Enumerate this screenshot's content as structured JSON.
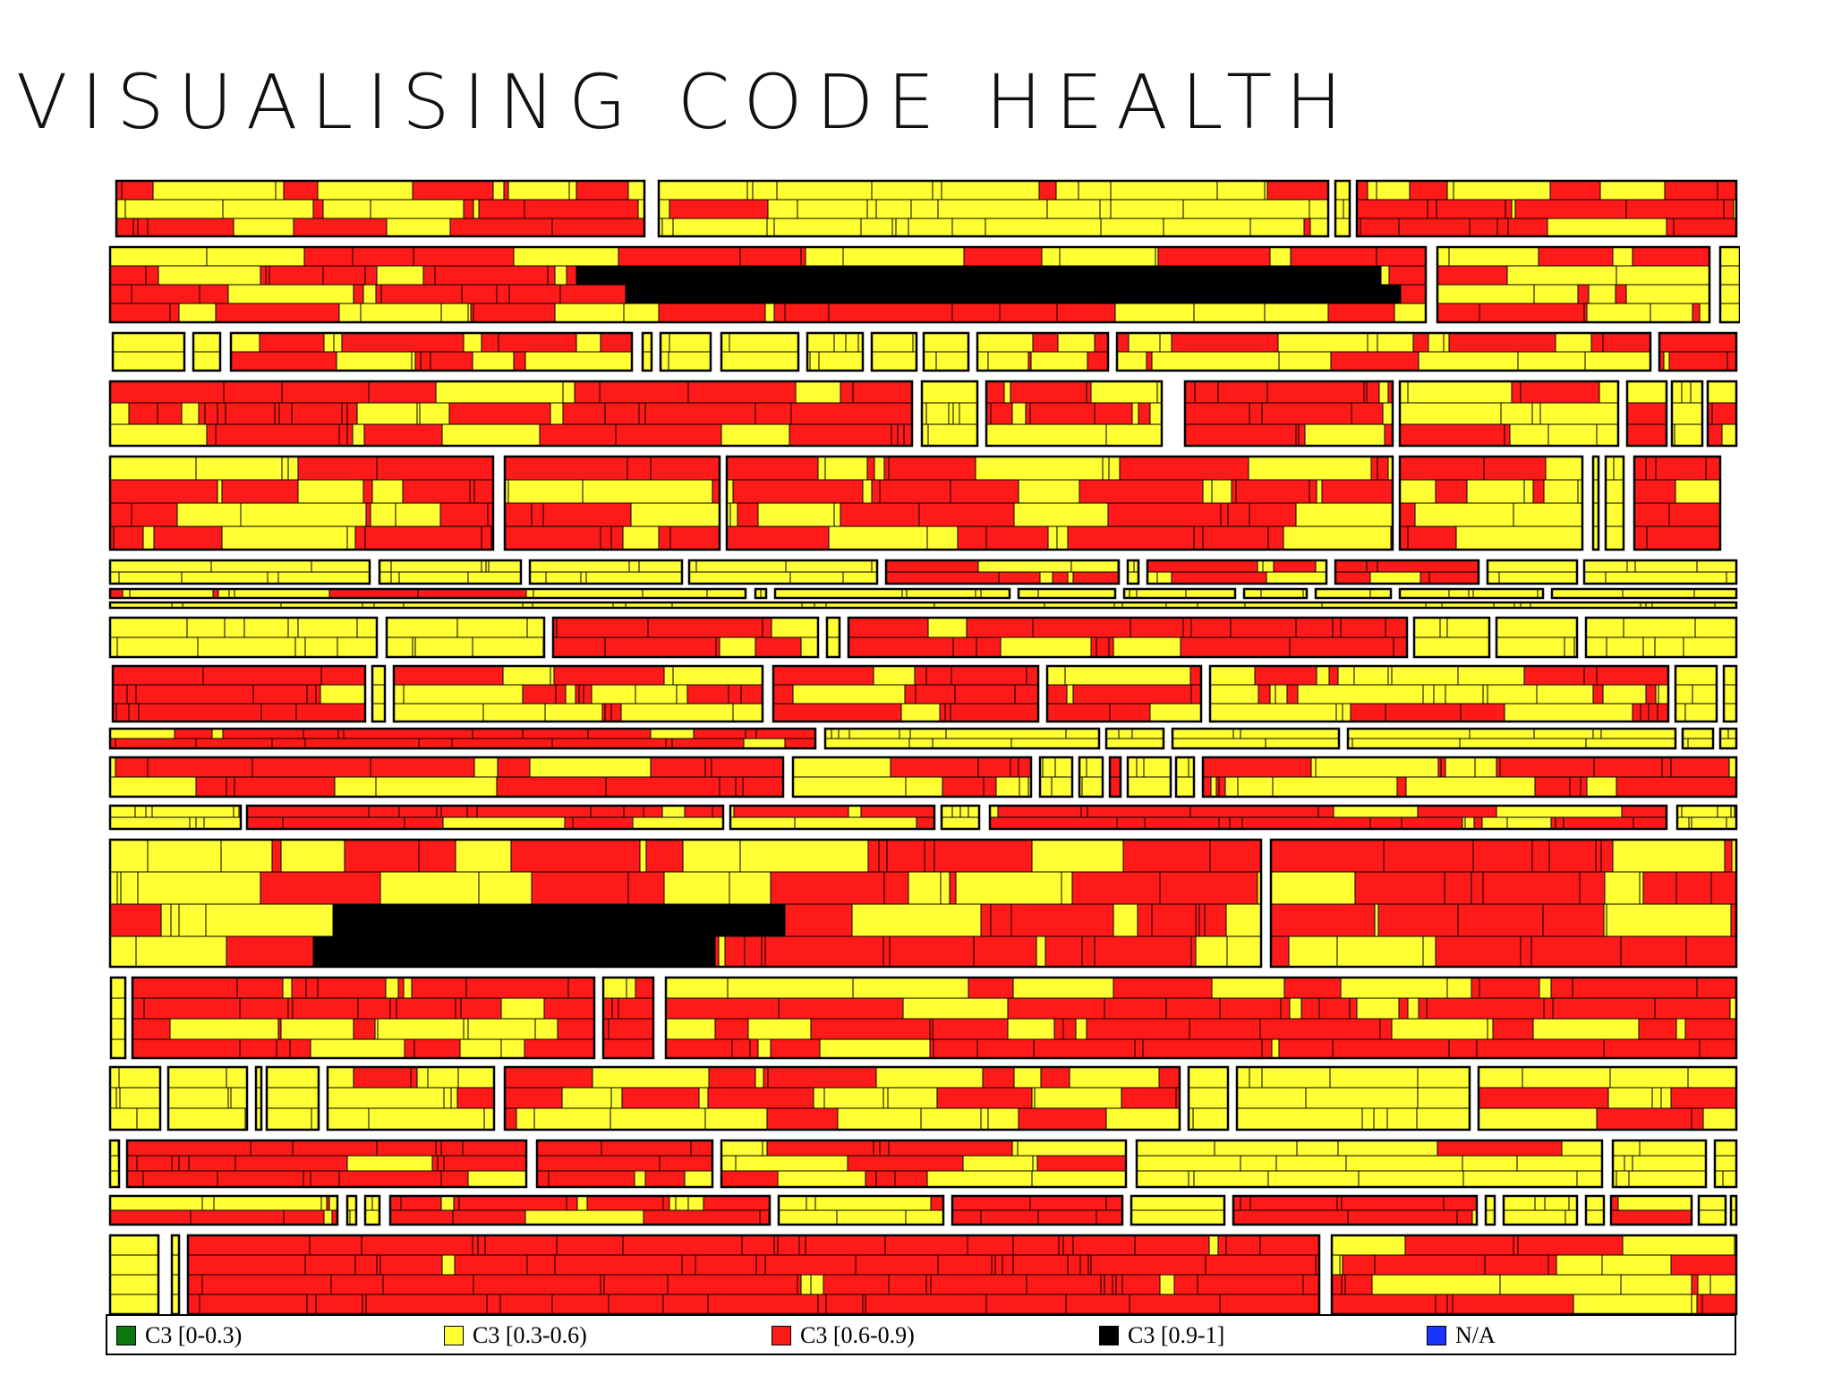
{
  "slide": {
    "title": "VISUALISING CODE HEALTH"
  },
  "legend": {
    "items": [
      {
        "key": "green",
        "label": "C3 [0-0.3)",
        "color": "#0a7a10"
      },
      {
        "key": "yellow",
        "label": "C3 [0.3-0.6)",
        "color": "#ffff33"
      },
      {
        "key": "red",
        "label": "C3 [0.6-0.9)",
        "color": "#ff1a1a"
      },
      {
        "key": "black",
        "label": "C3 [0.9-1]",
        "color": "#000000"
      },
      {
        "key": "blue",
        "label": "N/A",
        "color": "#1a33ff"
      }
    ]
  },
  "colors": {
    "background": "#ffffff",
    "border": "#000000"
  }
}
